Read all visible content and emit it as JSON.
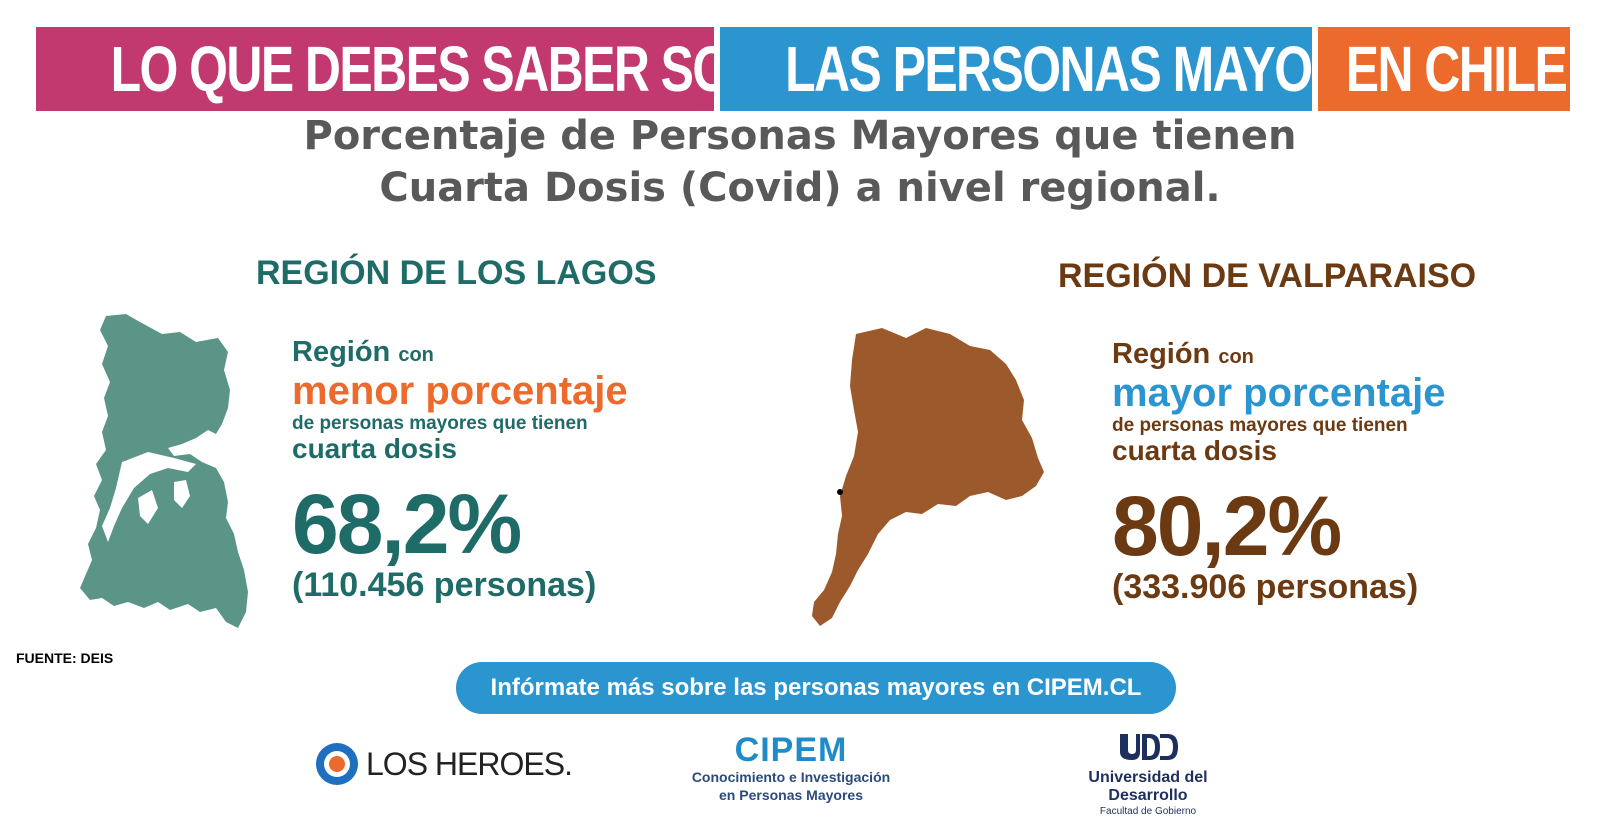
{
  "banner": {
    "part1": "LO QUE DEBES SABER SOBRE",
    "part2": "LAS PERSONAS MAYORES",
    "part3": "EN CHILE"
  },
  "title": {
    "line1": "Porcentaje de Personas Mayores que tienen",
    "line2": "Cuarta Dosis (Covid) a nivel regional."
  },
  "left": {
    "region_name": "REGIÓN DE LOS LAGOS",
    "label_region": "Región",
    "label_con": "con",
    "highlight": "menor porcentaje",
    "desc": "de personas mayores que tienen",
    "desc2": "cuarta dosis",
    "percentage": "68,2%",
    "people": "(110.456 personas)"
  },
  "right": {
    "region_name": "REGIÓN DE VALPARAISO",
    "label_region": "Región",
    "label_con": "con",
    "highlight": "mayor porcentaje",
    "desc": "de personas mayores que tienen",
    "desc2": "cuarta dosis",
    "percentage": "80,2%",
    "people": "(333.906 personas)"
  },
  "source": "FUENTE: DEIS",
  "cta": "Infórmate más sobre las personas mayores en CIPEM.CL",
  "logos": {
    "los_heroes": "LOS HEROES.",
    "cipem_title": "CIPEM",
    "cipem_sub1": "Conocimiento e Investigación",
    "cipem_sub2": "en Personas Mayores",
    "udd_mark": "UDD",
    "udd_title": "Universidad del Desarrollo",
    "udd_sub": "Facultad de Gobierno"
  },
  "colors": {
    "magenta": "#c2396f",
    "blue": "#2b95cf",
    "orange": "#eb6a2c",
    "teal": "#1e6b68",
    "brown": "#6b3a12",
    "map_teal": "#5b9587",
    "map_brown": "#9c5a2c"
  },
  "icons": {
    "left_map": "los-lagos-region-map",
    "right_map": "valparaiso-region-map",
    "los_heroes_logo": "target-circle-logo"
  }
}
